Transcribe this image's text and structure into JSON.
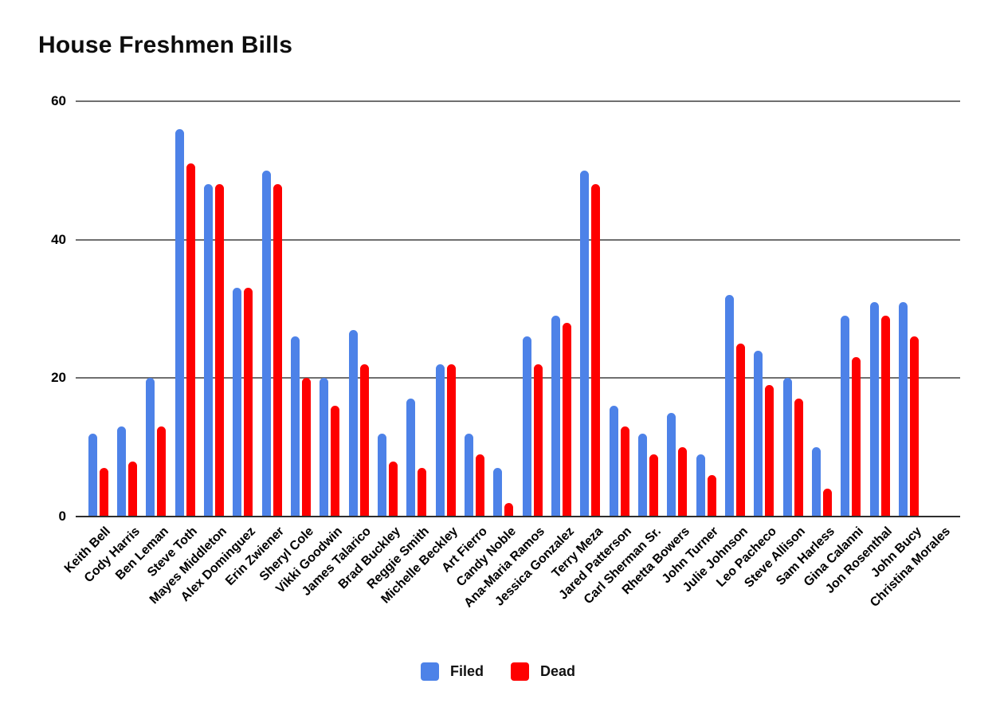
{
  "chart_data": {
    "type": "bar",
    "title": "House Freshmen Bills",
    "xlabel": "",
    "ylabel": "",
    "ylim": [
      0,
      60
    ],
    "yticks": [
      0,
      20,
      40,
      60
    ],
    "grid": "horizontal",
    "legend_position": "bottom",
    "categories": [
      "Keith Bell",
      "Cody Harris",
      "Ben Leman",
      "Steve Toth",
      "Mayes Middleton",
      "Alex Dominguez",
      "Erin Zwiener",
      "Sheryl Cole",
      "Vikki Goodwin",
      "James Talarico",
      "Brad Buckley",
      "Reggie Smith",
      "Michelle Beckley",
      "Art Fierro",
      "Candy Noble",
      "Ana-Maria Ramos",
      "Jessica Gonzalez",
      "Terry Meza",
      "Jared Patterson",
      "Carl Sherman Sr.",
      "Rhetta Bowers",
      "John Turner",
      "Julie Johnson",
      "Leo Pacheco",
      "Steve Allison",
      "Sam Harless",
      "Gina Calanni",
      "Jon Rosenthal",
      "John Bucy",
      "Christina Morales"
    ],
    "series": [
      {
        "name": "Filed",
        "color": "#4d82e8",
        "values": [
          12,
          13,
          20,
          56,
          48,
          33,
          50,
          26,
          20,
          27,
          12,
          17,
          22,
          12,
          7,
          26,
          29,
          50,
          16,
          12,
          15,
          9,
          32,
          24,
          20,
          10,
          29,
          31,
          31,
          0
        ]
      },
      {
        "name": "Dead",
        "color": "#fe0000",
        "values": [
          7,
          8,
          13,
          51,
          48,
          33,
          48,
          20,
          16,
          22,
          8,
          7,
          22,
          9,
          2,
          22,
          28,
          48,
          13,
          9,
          10,
          6,
          25,
          19,
          17,
          4,
          23,
          29,
          26,
          0
        ]
      }
    ],
    "colors": {
      "gridline": "#6f6f6f",
      "axis_line": "#2e2e2e",
      "text": "#000000"
    }
  }
}
